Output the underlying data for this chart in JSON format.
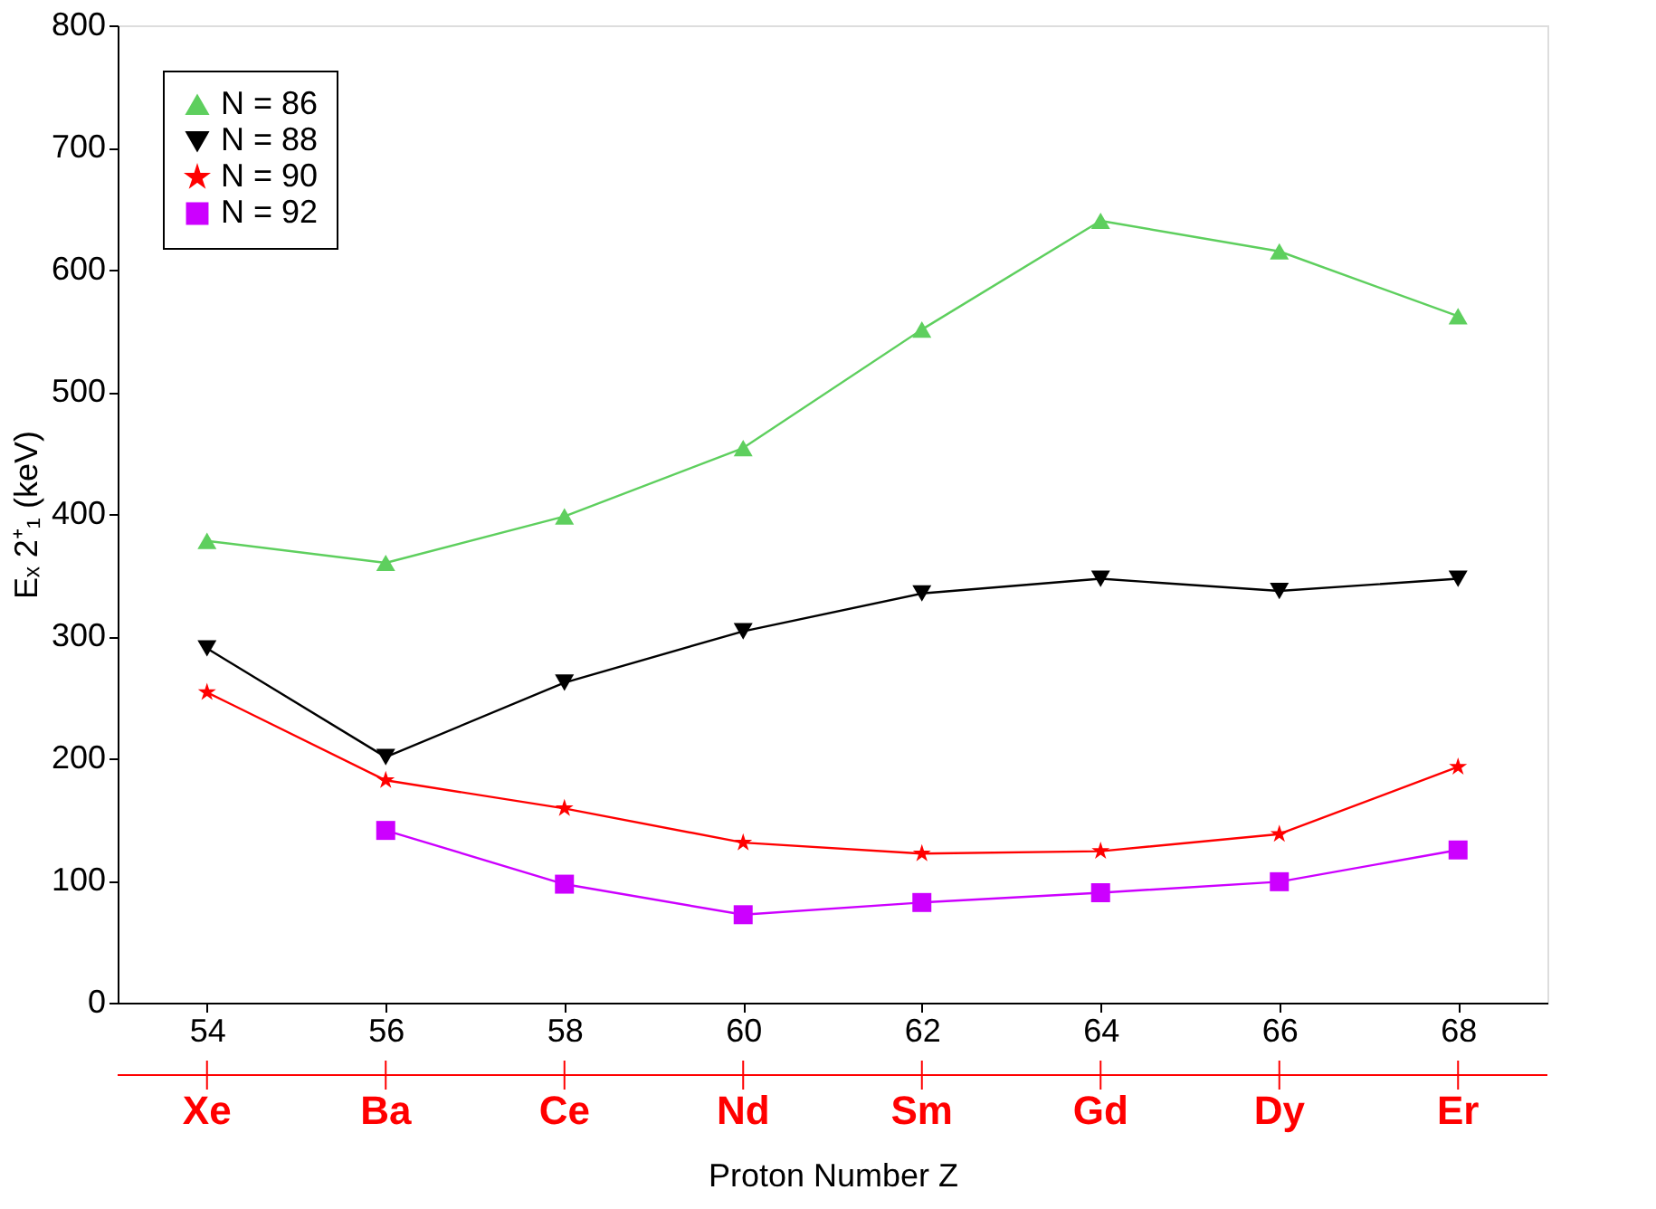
{
  "chart_data": {
    "type": "line",
    "xlabel": "Proton Number Z",
    "ylabel": "Eₓ 2⁺₁ (keV)",
    "x": [
      54,
      56,
      58,
      60,
      62,
      64,
      66,
      68
    ],
    "series": [
      {
        "name": "N = 86",
        "color": "#5ecf5e",
        "marker": "triangle",
        "values": [
          378,
          360,
          398,
          454,
          551,
          640,
          615,
          562
        ]
      },
      {
        "name": "N = 88",
        "color": "#000000",
        "marker": "triangle-down",
        "values": [
          290,
          201,
          262,
          304,
          335,
          347,
          337,
          347
        ]
      },
      {
        "name": "N = 90",
        "color": "#ff0000",
        "marker": "star",
        "values": [
          254,
          182,
          159,
          131,
          122,
          124,
          138,
          193
        ]
      },
      {
        "name": "N = 92",
        "color": "#cc00ff",
        "marker": "square",
        "values": [
          null,
          141,
          97,
          72,
          82,
          90,
          99,
          125
        ]
      }
    ],
    "xlim": [
      53,
      69
    ],
    "xticks": [
      54,
      56,
      58,
      60,
      62,
      64,
      66,
      68
    ],
    "ylim": [
      0,
      800
    ],
    "yticks": [
      0,
      100,
      200,
      300,
      400,
      500,
      600,
      700,
      800
    ],
    "annotations": [
      {
        "text": "Xe",
        "x": 54
      },
      {
        "text": "Ba",
        "x": 56
      },
      {
        "text": "Ce",
        "x": 58
      },
      {
        "text": "Nd",
        "x": 60
      },
      {
        "text": "Sm",
        "x": 62
      },
      {
        "text": "Gd",
        "x": 64
      },
      {
        "text": "Dy",
        "x": 66
      },
      {
        "text": "Er",
        "x": 68
      }
    ],
    "grid": false,
    "legend": "top left",
    "line_style": "solid"
  }
}
